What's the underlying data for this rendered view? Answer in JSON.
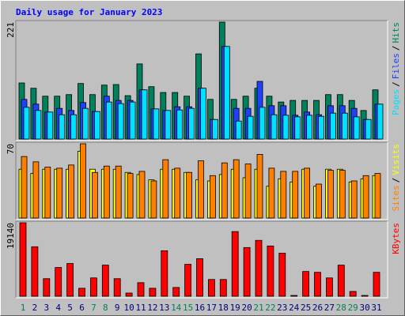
{
  "chart_data": [
    {
      "type": "bar",
      "title": "Daily usage for January 2023",
      "legend_separator": "/",
      "ylim": [
        0,
        221
      ],
      "yticks": [
        221
      ],
      "series": [
        {
          "name": "Hits",
          "color": "#00805C",
          "values": [
            106,
            96,
            81,
            81,
            84,
            105,
            84,
            102,
            103,
            82,
            142,
            99,
            88,
            88,
            81,
            161,
            75,
            221,
            75,
            81,
            96,
            81,
            70,
            73,
            73,
            73,
            84,
            84,
            73,
            54,
            93
          ]
        },
        {
          "name": "Files",
          "color": "#2040FF",
          "values": [
            75,
            66,
            51,
            58,
            54,
            69,
            52,
            81,
            73,
            73,
            93,
            57,
            54,
            61,
            61,
            96,
            37,
            175,
            58,
            58,
            109,
            63,
            63,
            45,
            51,
            46,
            63,
            63,
            58,
            37,
            66
          ]
        },
        {
          "name": "Pages",
          "color": "#00E0FF",
          "values": [
            60,
            54,
            51,
            46,
            46,
            58,
            52,
            70,
            67,
            70,
            93,
            57,
            54,
            55,
            58,
            96,
            37,
            175,
            34,
            43,
            60,
            46,
            45,
            42,
            45,
            43,
            49,
            49,
            42,
            37,
            66
          ]
        }
      ]
    },
    {
      "type": "bar",
      "legend_separator": "/",
      "ylim": [
        0,
        70
      ],
      "yticks": [
        70
      ],
      "series": [
        {
          "name": "Visits",
          "color": "#FFFF00",
          "values": [
            46,
            42,
            46,
            46,
            46,
            63,
            46,
            46,
            46,
            43,
            41,
            36,
            46,
            46,
            43,
            36,
            35,
            41,
            46,
            38,
            46,
            30,
            37,
            34,
            46,
            30,
            46,
            46,
            34,
            37,
            40
          ]
        },
        {
          "name": "Sites",
          "color": "#FF8000",
          "values": [
            58,
            53,
            48,
            47,
            50,
            70,
            43,
            49,
            49,
            42,
            44,
            35,
            55,
            47,
            43,
            54,
            40,
            52,
            55,
            51,
            60,
            47,
            44,
            44,
            47,
            32,
            45,
            45,
            35,
            40,
            42
          ]
        }
      ]
    },
    {
      "type": "bar",
      "ylim": [
        0,
        19140
      ],
      "yticks": [
        19140
      ],
      "series": [
        {
          "name": "KBytes",
          "color": "#FF0000",
          "values": [
            19140,
            12900,
            4580,
            7490,
            8530,
            2080,
            4780,
            8110,
            4580,
            830,
            3540,
            2080,
            11860,
            2290,
            8320,
            9780,
            4370,
            4370,
            16850,
            12690,
            14560,
            13100,
            11230,
            210,
            6450,
            6240,
            4780,
            8110,
            1250,
            210,
            6240
          ]
        }
      ],
      "categories": [
        "1",
        "2",
        "3",
        "4",
        "5",
        "6",
        "7",
        "8",
        "9",
        "10",
        "11",
        "12",
        "13",
        "14",
        "15",
        "16",
        "17",
        "18",
        "19",
        "20",
        "21",
        "22",
        "23",
        "24",
        "25",
        "26",
        "27",
        "28",
        "29",
        "30",
        "31"
      ],
      "category_colors": [
        "#00805C",
        "#000080",
        "#000080",
        "#000080",
        "#000080",
        "#000080",
        "#00805C",
        "#00805C",
        "#000080",
        "#000080",
        "#000080",
        "#000080",
        "#000080",
        "#00805C",
        "#00805C",
        "#000080",
        "#000080",
        "#000080",
        "#000080",
        "#000080",
        "#00805C",
        "#00805C",
        "#000080",
        "#000080",
        "#000080",
        "#000080",
        "#000080",
        "#00805C",
        "#00805C",
        "#000080",
        "#000080"
      ]
    }
  ]
}
